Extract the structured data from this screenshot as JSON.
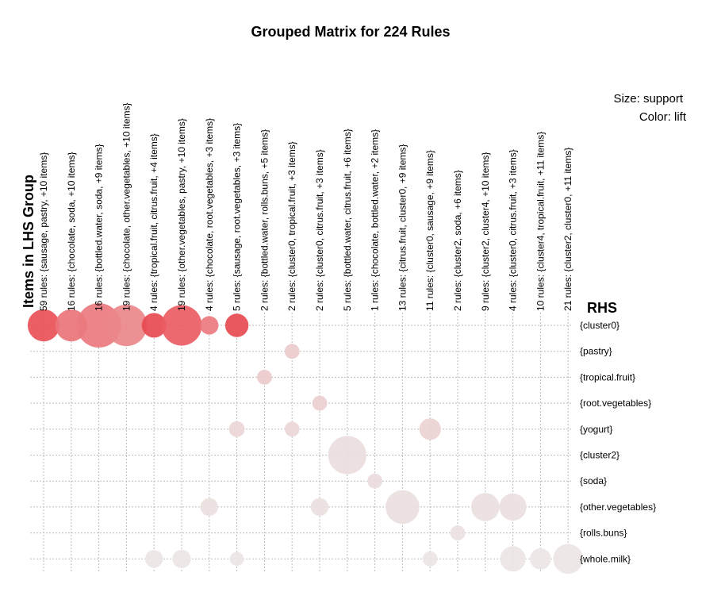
{
  "chart_data": {
    "type": "grouped-matrix-bubble",
    "title": "Grouped Matrix for 224 Rules",
    "x_axis_title": "Items in LHS Group",
    "y_axis_title": "RHS",
    "legend": {
      "size": "Size: support",
      "color": "Color: lift"
    },
    "lhs_groups": [
      "59 rules: {sausage, pastry, +10 items}",
      "16 rules: {chocolate, soda, +10 items}",
      "16 rules: {bottled.water, soda, +9 items}",
      "19 rules: {chocolate, other.vegetables, +10 items}",
      "4 rules: {tropical.fruit, citrus.fruit, +4 items}",
      "19 rules: {other.vegetables, pastry, +10 items}",
      "4 rules: {chocolate, root.vegetables, +3 items}",
      "5 rules: {sausage, root.vegetables, +3 items}",
      "2 rules: {bottled.water, rolls.buns, +5 items}",
      "2 rules: {cluster0, tropical.fruit, +3 items}",
      "2 rules: {cluster0, citrus.fruit, +3 items}",
      "5 rules: {bottled.water, citrus.fruit, +6 items}",
      "1 rules: {chocolate, bottled.water, +2 items}",
      "13 rules: {citrus.fruit, cluster0, +9 items}",
      "11 rules: {cluster0, sausage, +9 items}",
      "2 rules: {cluster2, soda, +6 items}",
      "9 rules: {cluster2, cluster4, +10 items}",
      "4 rules: {cluster0, citrus.fruit, +3 items}",
      "10 rules: {cluster4, tropical.fruit, +11 items}",
      "21 rules: {cluster2, cluster0, +11 items}"
    ],
    "rhs_items": [
      "{cluster0}",
      "{pastry}",
      "{tropical.fruit}",
      "{root.vegetables}",
      "{yogurt}",
      "{cluster2}",
      "{soda}",
      "{other.vegetables}",
      "{rolls.buns}",
      "{whole.milk}"
    ],
    "points": [
      {
        "lhs": 0,
        "rhs": 0,
        "support": 0.45,
        "lift": 0.85
      },
      {
        "lhs": 1,
        "rhs": 0,
        "support": 0.45,
        "lift": 0.65
      },
      {
        "lhs": 2,
        "rhs": 0,
        "support": 1.0,
        "lift": 0.62
      },
      {
        "lhs": 3,
        "rhs": 0,
        "support": 0.85,
        "lift": 0.55
      },
      {
        "lhs": 4,
        "rhs": 0,
        "support": 0.23,
        "lift": 0.88
      },
      {
        "lhs": 5,
        "rhs": 0,
        "support": 0.8,
        "lift": 0.78
      },
      {
        "lhs": 6,
        "rhs": 0,
        "support": 0.1,
        "lift": 0.62
      },
      {
        "lhs": 7,
        "rhs": 0,
        "support": 0.2,
        "lift": 0.88
      },
      {
        "lhs": 9,
        "rhs": 1,
        "support": 0.05,
        "lift": 0.18
      },
      {
        "lhs": 8,
        "rhs": 2,
        "support": 0.05,
        "lift": 0.18
      },
      {
        "lhs": 10,
        "rhs": 3,
        "support": 0.05,
        "lift": 0.16
      },
      {
        "lhs": 7,
        "rhs": 4,
        "support": 0.06,
        "lift": 0.12
      },
      {
        "lhs": 9,
        "rhs": 4,
        "support": 0.05,
        "lift": 0.12
      },
      {
        "lhs": 14,
        "rhs": 4,
        "support": 0.16,
        "lift": 0.14
      },
      {
        "lhs": 11,
        "rhs": 5,
        "support": 0.7,
        "lift": 0.08
      },
      {
        "lhs": 12,
        "rhs": 6,
        "support": 0.05,
        "lift": 0.09
      },
      {
        "lhs": 6,
        "rhs": 7,
        "support": 0.09,
        "lift": 0.07
      },
      {
        "lhs": 10,
        "rhs": 7,
        "support": 0.09,
        "lift": 0.07
      },
      {
        "lhs": 13,
        "rhs": 7,
        "support": 0.52,
        "lift": 0.07
      },
      {
        "lhs": 16,
        "rhs": 7,
        "support": 0.33,
        "lift": 0.07
      },
      {
        "lhs": 17,
        "rhs": 7,
        "support": 0.3,
        "lift": 0.07
      },
      {
        "lhs": 15,
        "rhs": 8,
        "support": 0.05,
        "lift": 0.06
      },
      {
        "lhs": 4,
        "rhs": 9,
        "support": 0.09,
        "lift": 0.04
      },
      {
        "lhs": 5,
        "rhs": 9,
        "support": 0.1,
        "lift": 0.04
      },
      {
        "lhs": 7,
        "rhs": 9,
        "support": 0.04,
        "lift": 0.04
      },
      {
        "lhs": 14,
        "rhs": 9,
        "support": 0.05,
        "lift": 0.04
      },
      {
        "lhs": 17,
        "rhs": 9,
        "support": 0.25,
        "lift": 0.04
      },
      {
        "lhs": 18,
        "rhs": 9,
        "support": 0.15,
        "lift": 0.04
      },
      {
        "lhs": 19,
        "rhs": 9,
        "support": 0.38,
        "lift": 0.04
      }
    ],
    "colors": {
      "low": "#ececec",
      "high": "#e8343c",
      "grid": "#bdbdbd"
    }
  }
}
